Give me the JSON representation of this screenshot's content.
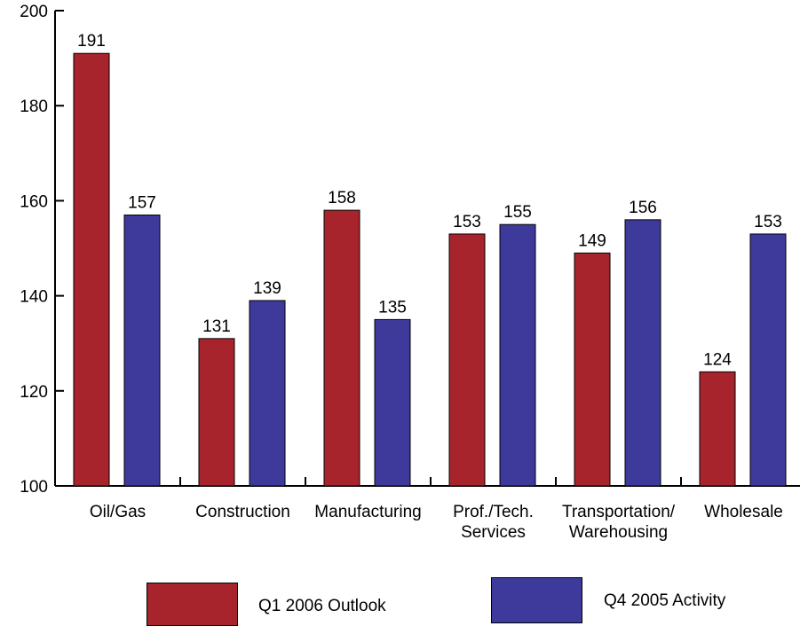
{
  "chart_data": {
    "type": "bar",
    "categories": [
      [
        "Oil/Gas"
      ],
      [
        "Construction"
      ],
      [
        "Manufacturing"
      ],
      [
        "Prof./Tech.",
        "Services"
      ],
      [
        "Transportation/",
        "Warehousing"
      ],
      [
        "Wholesale"
      ]
    ],
    "series": [
      {
        "name": "Q1 2006 Outlook",
        "color": "#a8242c",
        "values": [
          191,
          131,
          158,
          153,
          149,
          124
        ]
      },
      {
        "name": "Q4 2005 Activity",
        "color": "#3d3a9c",
        "values": [
          157,
          139,
          135,
          155,
          156,
          153
        ]
      }
    ],
    "ylim": [
      100,
      200
    ],
    "yticks": [
      100,
      120,
      140,
      160,
      180,
      200
    ],
    "data_labels": true,
    "grid": false,
    "legend_position": "bottom"
  }
}
